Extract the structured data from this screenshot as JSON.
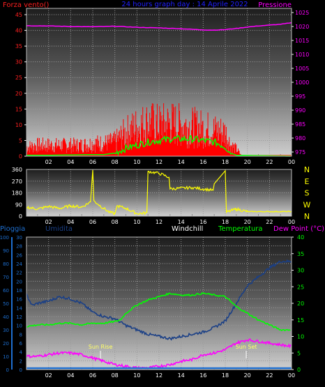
{
  "chart_data": [
    {
      "type": "line",
      "title": "24 hours graph day : 14 Aprile 2022",
      "x_ticks": [
        "02",
        "04",
        "06",
        "08",
        "10",
        "12",
        "14",
        "16",
        "18",
        "20",
        "22",
        "00"
      ],
      "left_axis": {
        "label": "Forza vento()",
        "ticks": [
          0,
          5,
          10,
          15,
          20,
          25,
          30,
          35,
          40,
          45
        ],
        "ylim": [
          0,
          47
        ],
        "color": "#ff2020"
      },
      "right_axis": {
        "label": "Pressione",
        "ticks": [
          975,
          980,
          985,
          990,
          995,
          1000,
          1005,
          1010,
          1015,
          1020,
          1025
        ],
        "ylim": [
          973.5,
          1026.5
        ],
        "color": "#ff00ff"
      },
      "pressure_series": {
        "color": "#ff00ff",
        "x": [
          0,
          2,
          4,
          6,
          8,
          10,
          12,
          14,
          16,
          17,
          18,
          19,
          20,
          21,
          22,
          23,
          24
        ],
        "y": [
          1020.3,
          1020.2,
          1020.0,
          1019.9,
          1020.1,
          1019.7,
          1019.5,
          1019.2,
          1018.8,
          1018.7,
          1018.9,
          1019.3,
          1019.8,
          1020.2,
          1020.5,
          1020.8,
          1021.3
        ]
      },
      "gust_envelope": {
        "color": "#ff0000",
        "x": [
          0,
          1,
          2,
          4,
          5,
          6,
          7,
          8,
          9,
          10,
          11,
          12,
          13,
          14,
          15,
          16,
          17,
          18,
          18.5,
          19,
          19.5,
          24
        ],
        "y": [
          5,
          6,
          6,
          6,
          6,
          7,
          7,
          8,
          13,
          16,
          18,
          17,
          18,
          17,
          16,
          15,
          14,
          13,
          6,
          4,
          0,
          0
        ]
      },
      "wind_series": {
        "color": "#00ff00",
        "x": [
          0,
          2,
          4,
          6,
          7,
          8,
          9,
          10,
          11,
          12,
          13,
          14,
          15,
          16,
          17,
          18,
          18.5,
          19,
          24
        ],
        "y": [
          0.3,
          0.3,
          0.4,
          0.5,
          0.5,
          1,
          2.5,
          3.5,
          4.5,
          5,
          5.5,
          5.5,
          5.5,
          5,
          4.5,
          3,
          1,
          0.3,
          0
        ]
      }
    },
    {
      "type": "line",
      "x_ticks": [
        "02",
        "04",
        "06",
        "08",
        "10",
        "12",
        "14",
        "16",
        "18",
        "20",
        "22",
        "00"
      ],
      "left_axis": {
        "ticks": [
          0,
          90,
          180,
          270,
          360
        ],
        "ylim": [
          0,
          360
        ]
      },
      "compass_labels": [
        "N",
        "W",
        "S",
        "E",
        "N"
      ],
      "direction_series": {
        "color": "#ffff00",
        "x": [
          0,
          1,
          2,
          3,
          4,
          5,
          5.8,
          6,
          6.1,
          6.5,
          7,
          7.5,
          8,
          8.2,
          9,
          10,
          10.9,
          11,
          12,
          12.9,
          13,
          15,
          16.9,
          17,
          18,
          18.1,
          19,
          20,
          24
        ],
        "y": [
          70,
          55,
          75,
          60,
          80,
          70,
          110,
          355,
          120,
          90,
          60,
          30,
          20,
          80,
          60,
          20,
          25,
          345,
          330,
          300,
          210,
          220,
          200,
          250,
          350,
          30,
          55,
          35,
          35
        ]
      }
    },
    {
      "type": "line",
      "x_ticks": [
        "02",
        "04",
        "06",
        "08",
        "10",
        "12",
        "14",
        "16",
        "18",
        "20",
        "22",
        "00"
      ],
      "labels": {
        "pioggia": "Pioggia",
        "umidita": "Umidita",
        "windchill": "Windchill",
        "temperatura": "Temperatura",
        "dew": "Dew Point (°C)"
      },
      "colors": {
        "pioggia": "#1e6fd0",
        "umidita": "#1a3f86",
        "windchill": "#ffffff",
        "temperatura": "#00ff00",
        "dew": "#ff00ff"
      },
      "pioggia_axis": {
        "ticks": [
          0,
          10,
          20,
          30,
          40,
          50,
          60,
          70,
          80,
          90,
          100
        ],
        "ylim": [
          0,
          100
        ]
      },
      "mm_axis": {
        "ticks": [
          0,
          2,
          4,
          6,
          8,
          10,
          12,
          14,
          16,
          18,
          20,
          22,
          24,
          26,
          28,
          30
        ],
        "ylim": [
          0,
          30
        ]
      },
      "celsius_axis": {
        "ticks": [
          0,
          5,
          10,
          15,
          20,
          25,
          30,
          35,
          40
        ],
        "ylim": [
          0,
          40
        ]
      },
      "annotations": [
        {
          "text": "Sun Rise",
          "x": 6.7
        },
        {
          "text": "Sun Set",
          "x": 19.9
        }
      ],
      "umidita_series": {
        "x": [
          0,
          0.5,
          1,
          2,
          3,
          4,
          5,
          6,
          7,
          8,
          9,
          10,
          11,
          12,
          13,
          14,
          15,
          16,
          17,
          18,
          19,
          20,
          21,
          22,
          23,
          24
        ],
        "y": [
          17,
          14.5,
          15,
          15.5,
          16.5,
          16,
          15,
          13,
          12,
          11.5,
          10,
          9,
          8,
          7.5,
          7,
          7.5,
          8,
          8.5,
          9.5,
          11,
          15,
          19,
          21,
          23,
          24.5,
          24.5
        ]
      },
      "temperatura_series": {
        "x": [
          0,
          1,
          2,
          3,
          4,
          5,
          6,
          7,
          8,
          8.5,
          9,
          10,
          11,
          12,
          13,
          14,
          15,
          16,
          17,
          18,
          19,
          20,
          21,
          22,
          23,
          24
        ],
        "y": [
          13,
          13.5,
          13.5,
          14,
          14,
          13.5,
          14,
          14,
          14.5,
          15,
          17,
          19.5,
          21,
          22,
          23,
          22.5,
          22.5,
          23,
          22.5,
          22,
          19,
          17,
          15,
          13.5,
          12,
          12
        ]
      },
      "dew_series": {
        "x": [
          0,
          1,
          2,
          3,
          4,
          5,
          6,
          7,
          8,
          9,
          10,
          11,
          12,
          13,
          14,
          15,
          16,
          17,
          18,
          19,
          20,
          21,
          22,
          23,
          24
        ],
        "y": [
          4,
          4,
          4.5,
          5,
          5,
          4.5,
          3.5,
          2.5,
          1.5,
          1,
          0.5,
          0.5,
          1,
          1.5,
          2.5,
          3,
          4.5,
          5,
          6,
          8,
          9,
          8.5,
          8,
          7.5,
          7
        ]
      },
      "pioggia_series": {
        "x": [
          0,
          24
        ],
        "y": [
          0,
          0
        ]
      }
    }
  ]
}
